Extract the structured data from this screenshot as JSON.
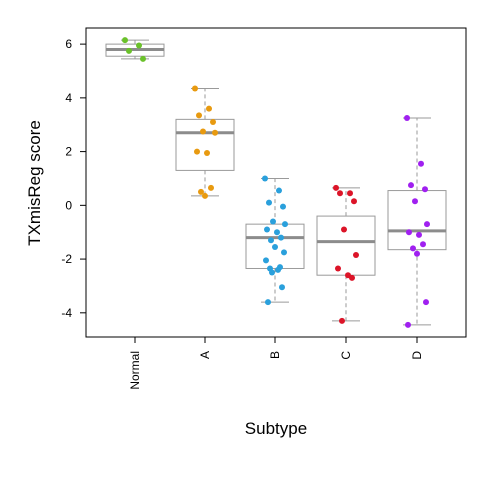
{
  "chart_data": {
    "type": "boxplot",
    "title": "",
    "xlabel": "Subtype",
    "ylabel": "TXmisReg score",
    "ylim": [
      -4.9,
      6.6
    ],
    "yticks": [
      -4,
      -2,
      0,
      2,
      4,
      6
    ],
    "categories": [
      "Normal",
      "A",
      "B",
      "C",
      "D"
    ],
    "colors": {
      "Normal": "#6ac12a",
      "A": "#e89a10",
      "B": "#2aa0dc",
      "C": "#dc1428",
      "D": "#a020f0"
    },
    "box_color": "#9a9a9a",
    "median_color": "#8c8c8c",
    "grid": false,
    "legend": "none",
    "boxes": [
      {
        "category": "Normal",
        "whisker_low": 5.45,
        "q1": 5.55,
        "median": 5.8,
        "q3": 6.0,
        "whisker_high": 6.15
      },
      {
        "category": "A",
        "whisker_low": 0.35,
        "q1": 1.3,
        "median": 2.7,
        "q3": 3.2,
        "whisker_high": 4.35
      },
      {
        "category": "B",
        "whisker_low": -3.6,
        "q1": -2.35,
        "median": -1.2,
        "q3": -0.7,
        "whisker_high": 1.0
      },
      {
        "category": "C",
        "whisker_low": -4.3,
        "q1": -2.6,
        "median": -1.35,
        "q3": -0.4,
        "whisker_high": 0.65
      },
      {
        "category": "D",
        "whisker_low": -4.45,
        "q1": -1.65,
        "median": -0.95,
        "q3": 0.55,
        "whisker_high": 3.25
      }
    ],
    "points": {
      "Normal": [
        6.15,
        5.95,
        5.75,
        5.45
      ],
      "A": [
        4.35,
        3.6,
        3.35,
        3.1,
        2.75,
        2.7,
        2.0,
        1.95,
        0.65,
        0.5,
        0.35
      ],
      "B": [
        1.0,
        0.55,
        0.1,
        -0.05,
        -0.6,
        -0.7,
        -0.9,
        -1.0,
        -1.2,
        -1.3,
        -1.55,
        -1.75,
        -2.05,
        -2.3,
        -2.35,
        -2.4,
        -2.5,
        -3.05,
        -3.6
      ],
      "C": [
        0.65,
        0.45,
        0.45,
        0.15,
        -0.9,
        -1.85,
        -2.35,
        -2.6,
        -2.7,
        -4.3
      ],
      "D": [
        3.25,
        1.55,
        0.75,
        0.6,
        0.15,
        -0.7,
        -1.0,
        -1.1,
        -1.45,
        -1.6,
        -1.8,
        -3.6,
        -4.45
      ]
    }
  }
}
